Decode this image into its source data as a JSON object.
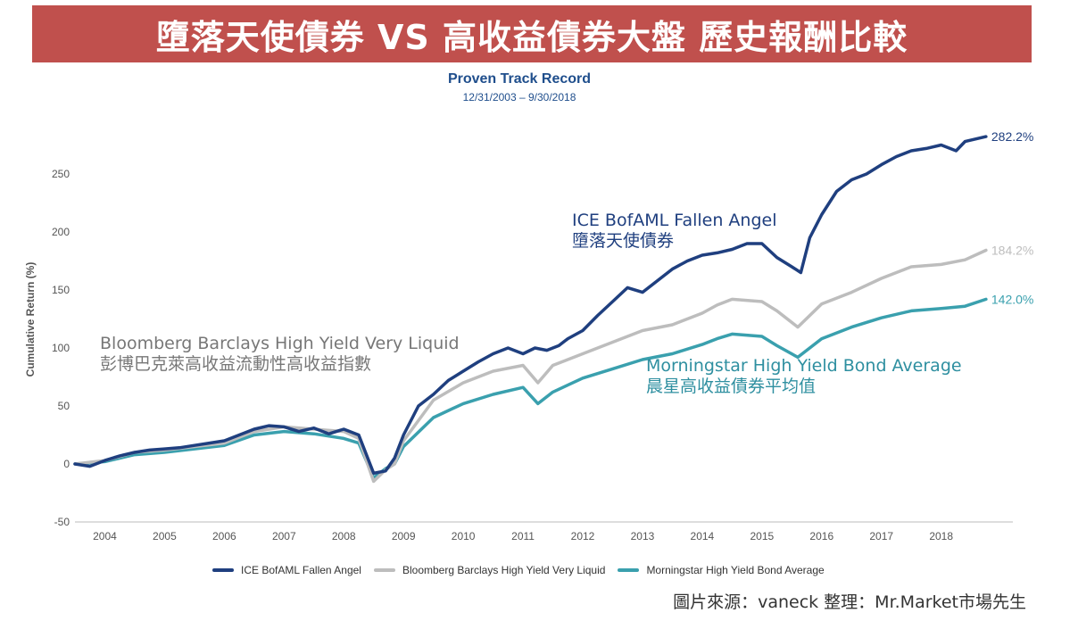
{
  "header": {
    "title": "墮落天使債券 VS 高收益債券大盤 歷史報酬比較"
  },
  "source_note": "圖片來源：vaneck  整理：Mr.Market市場先生",
  "colors": {
    "fallen": "#1f3f7f",
    "bloomberg": "#bdbdbd",
    "morningstar": "#3aa0ae",
    "banner": "#c0504d"
  },
  "annotations": {
    "fallen": {
      "en": "ICE BofAML Fallen Angel",
      "zh": "墮落天使債券"
    },
    "bloomberg": {
      "en": "Bloomberg Barclays High Yield Very Liquid",
      "zh": "彭博巴克萊高收益流動性高收益指數"
    },
    "morningstar": {
      "en": "Morningstar High Yield Bond Average",
      "zh": "晨星高收益債券平均值"
    }
  },
  "chart_data": {
    "type": "line",
    "title": "Proven Track Record",
    "subtitle": "12/31/2003 – 9/30/2018",
    "ylabel": "Cumulative Return (%)",
    "xlabel": "",
    "ylim": [
      -50,
      300
    ],
    "xlim": [
      2003.5,
      2019.2
    ],
    "yticks": [
      -50,
      0,
      50,
      100,
      150,
      200,
      250
    ],
    "xticks": [
      "2004",
      "2005",
      "2006",
      "2007",
      "2008",
      "2009",
      "2010",
      "2011",
      "2012",
      "2013",
      "2014",
      "2015",
      "2016",
      "2017",
      "2018"
    ],
    "legend_position": "bottom",
    "grid": false,
    "series": [
      {
        "name": "ICE BofAML Fallen Angel",
        "end_label": "282.2%",
        "x": [
          2003.5,
          2003.75,
          2004,
          2004.25,
          2004.5,
          2004.75,
          2005,
          2005.25,
          2005.5,
          2005.75,
          2006,
          2006.25,
          2006.5,
          2006.75,
          2007,
          2007.25,
          2007.5,
          2007.75,
          2008,
          2008.25,
          2008.5,
          2008.7,
          2008.85,
          2009,
          2009.25,
          2009.5,
          2009.75,
          2010,
          2010.25,
          2010.5,
          2010.75,
          2011,
          2011.2,
          2011.4,
          2011.6,
          2011.75,
          2012,
          2012.25,
          2012.5,
          2012.75,
          2013,
          2013.25,
          2013.5,
          2013.75,
          2014,
          2014.25,
          2014.5,
          2014.75,
          2015,
          2015.25,
          2015.5,
          2015.65,
          2015.8,
          2016,
          2016.25,
          2016.5,
          2016.75,
          2017,
          2017.25,
          2017.5,
          2017.75,
          2018,
          2018.25,
          2018.4,
          2018.75
        ],
        "values": [
          0,
          -2,
          3,
          7,
          10,
          12,
          13,
          14,
          16,
          18,
          20,
          25,
          30,
          33,
          32,
          28,
          31,
          26,
          30,
          25,
          -8,
          -6,
          5,
          25,
          50,
          60,
          72,
          80,
          88,
          95,
          100,
          95,
          100,
          98,
          102,
          108,
          115,
          128,
          140,
          152,
          148,
          158,
          168,
          175,
          180,
          182,
          185,
          190,
          190,
          178,
          170,
          165,
          195,
          215,
          235,
          245,
          250,
          258,
          265,
          270,
          272,
          275,
          270,
          278,
          282.2
        ]
      },
      {
        "name": "Bloomberg Barclays High Yield Very Liquid",
        "end_label": "184.2%",
        "x": [
          2003.5,
          2004,
          2004.5,
          2005,
          2005.5,
          2006,
          2006.5,
          2007,
          2007.5,
          2008,
          2008.25,
          2008.5,
          2008.7,
          2008.85,
          2009,
          2009.5,
          2010,
          2010.5,
          2011,
          2011.25,
          2011.5,
          2011.75,
          2012,
          2012.5,
          2013,
          2013.5,
          2014,
          2014.25,
          2014.5,
          2015,
          2015.25,
          2015.6,
          2015.8,
          2016,
          2016.5,
          2017,
          2017.5,
          2018,
          2018.4,
          2018.75
        ],
        "values": [
          0,
          3,
          10,
          12,
          15,
          18,
          28,
          32,
          30,
          28,
          22,
          -15,
          -5,
          0,
          20,
          55,
          70,
          80,
          85,
          70,
          85,
          90,
          95,
          105,
          115,
          120,
          130,
          137,
          142,
          140,
          132,
          118,
          128,
          138,
          148,
          160,
          170,
          172,
          176,
          184.2
        ]
      },
      {
        "name": "Morningstar High Yield Bond Average",
        "end_label": "142.0%",
        "x": [
          2003.5,
          2004,
          2004.5,
          2005,
          2005.5,
          2006,
          2006.5,
          2007,
          2007.5,
          2008,
          2008.25,
          2008.5,
          2008.7,
          2008.85,
          2009,
          2009.5,
          2010,
          2010.5,
          2011,
          2011.25,
          2011.5,
          2011.75,
          2012,
          2012.5,
          2013,
          2013.5,
          2014,
          2014.25,
          2014.5,
          2015,
          2015.25,
          2015.6,
          2015.8,
          2016,
          2016.5,
          2017,
          2017.5,
          2018,
          2018.4,
          2018.75
        ],
        "values": [
          0,
          2,
          8,
          10,
          13,
          16,
          25,
          28,
          26,
          22,
          18,
          -12,
          -4,
          0,
          15,
          40,
          52,
          60,
          66,
          52,
          62,
          68,
          74,
          82,
          90,
          95,
          103,
          108,
          112,
          110,
          102,
          92,
          100,
          108,
          118,
          126,
          132,
          134,
          136,
          142.0
        ]
      }
    ]
  }
}
